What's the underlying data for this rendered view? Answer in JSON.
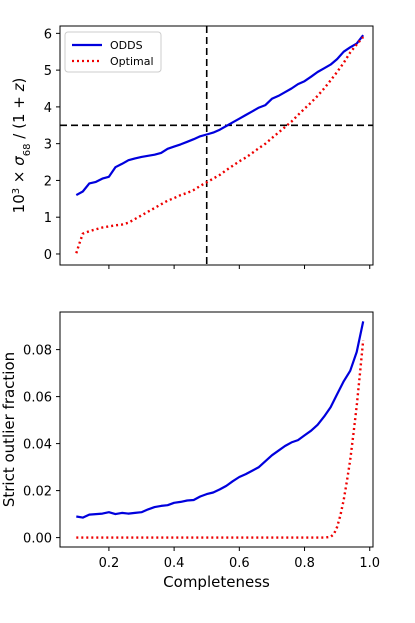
{
  "chart_data": [
    {
      "type": "line",
      "ylabel": "10³ × σ₆₈ / (1 + z)",
      "ylabel_parts": {
        "pre": "10",
        "sup": "3",
        "mid": " × ",
        "sigma": "σ",
        "sub": "68",
        "post": " / (1 + ",
        "z": "z",
        "close": ")"
      },
      "xlim": [
        0.05,
        1.01
      ],
      "ylim": [
        -0.3,
        6.2
      ],
      "yticks": [
        0,
        1,
        2,
        3,
        4,
        5,
        6
      ],
      "yticklabels": [
        "0",
        "1",
        "2",
        "3",
        "4",
        "5",
        "6"
      ],
      "xticks": [
        0.2,
        0.4,
        0.6,
        0.8,
        1.0
      ],
      "xticklabels_shown": false,
      "hline": 3.5,
      "vline": 0.5,
      "legend": {
        "placement": "top-left",
        "entries": [
          "ODDS",
          "Optimal"
        ]
      },
      "series": [
        {
          "name": "ODDS",
          "color": "#0000dd",
          "style": "solid",
          "x": [
            0.1,
            0.12,
            0.14,
            0.16,
            0.18,
            0.2,
            0.22,
            0.24,
            0.26,
            0.28,
            0.3,
            0.32,
            0.34,
            0.36,
            0.38,
            0.4,
            0.42,
            0.44,
            0.46,
            0.48,
            0.5,
            0.52,
            0.54,
            0.56,
            0.58,
            0.6,
            0.62,
            0.64,
            0.66,
            0.68,
            0.7,
            0.72,
            0.74,
            0.76,
            0.78,
            0.8,
            0.82,
            0.84,
            0.86,
            0.88,
            0.9,
            0.92,
            0.94,
            0.96,
            0.98
          ],
          "y": [
            1.6,
            1.7,
            1.92,
            1.96,
            2.05,
            2.1,
            2.36,
            2.45,
            2.55,
            2.6,
            2.64,
            2.67,
            2.7,
            2.75,
            2.86,
            2.92,
            2.98,
            3.05,
            3.12,
            3.2,
            3.25,
            3.3,
            3.38,
            3.48,
            3.58,
            3.68,
            3.78,
            3.88,
            3.98,
            4.05,
            4.22,
            4.3,
            4.4,
            4.5,
            4.62,
            4.7,
            4.82,
            4.95,
            5.05,
            5.15,
            5.3,
            5.5,
            5.62,
            5.72,
            5.95
          ]
        },
        {
          "name": "Optimal",
          "color": "#ee0000",
          "style": "dotted",
          "x": [
            0.1,
            0.11,
            0.12,
            0.14,
            0.16,
            0.18,
            0.2,
            0.22,
            0.24,
            0.26,
            0.28,
            0.3,
            0.32,
            0.34,
            0.36,
            0.38,
            0.4,
            0.42,
            0.44,
            0.46,
            0.48,
            0.5,
            0.52,
            0.54,
            0.56,
            0.58,
            0.6,
            0.62,
            0.64,
            0.66,
            0.68,
            0.7,
            0.72,
            0.74,
            0.76,
            0.78,
            0.8,
            0.82,
            0.84,
            0.86,
            0.88,
            0.9,
            0.92,
            0.94,
            0.96,
            0.98
          ],
          "y": [
            0.02,
            0.3,
            0.55,
            0.62,
            0.67,
            0.72,
            0.75,
            0.78,
            0.8,
            0.85,
            0.95,
            1.05,
            1.15,
            1.25,
            1.35,
            1.45,
            1.52,
            1.6,
            1.66,
            1.74,
            1.85,
            1.95,
            2.05,
            2.15,
            2.28,
            2.4,
            2.52,
            2.62,
            2.75,
            2.88,
            3.0,
            3.15,
            3.3,
            3.45,
            3.6,
            3.78,
            3.95,
            4.12,
            4.3,
            4.5,
            4.72,
            4.95,
            5.2,
            5.48,
            5.7,
            5.9
          ]
        }
      ]
    },
    {
      "type": "line",
      "xlabel": "Completeness",
      "ylabel": "Strict outlier fraction",
      "xlim": [
        0.05,
        1.01
      ],
      "ylim": [
        -0.004,
        0.096
      ],
      "yticks": [
        0.0,
        0.02,
        0.04,
        0.06,
        0.08
      ],
      "yticklabels": [
        "0.00",
        "0.02",
        "0.04",
        "0.06",
        "0.08"
      ],
      "xticks": [
        0.2,
        0.4,
        0.6,
        0.8,
        1.0
      ],
      "xticklabels": [
        "0.2",
        "0.4",
        "0.6",
        "0.8",
        "1.0"
      ],
      "series": [
        {
          "name": "ODDS",
          "color": "#0000dd",
          "style": "solid",
          "x": [
            0.1,
            0.12,
            0.14,
            0.16,
            0.18,
            0.2,
            0.22,
            0.24,
            0.26,
            0.28,
            0.3,
            0.32,
            0.34,
            0.36,
            0.38,
            0.4,
            0.42,
            0.44,
            0.46,
            0.48,
            0.5,
            0.52,
            0.54,
            0.56,
            0.58,
            0.6,
            0.62,
            0.64,
            0.66,
            0.68,
            0.7,
            0.72,
            0.74,
            0.76,
            0.78,
            0.8,
            0.82,
            0.84,
            0.86,
            0.88,
            0.9,
            0.92,
            0.94,
            0.96,
            0.98
          ],
          "y": [
            0.009,
            0.0085,
            0.0098,
            0.01,
            0.0102,
            0.0108,
            0.01,
            0.0105,
            0.0102,
            0.0105,
            0.0108,
            0.012,
            0.013,
            0.0135,
            0.0138,
            0.0148,
            0.0152,
            0.0158,
            0.016,
            0.0175,
            0.0185,
            0.0192,
            0.0205,
            0.022,
            0.024,
            0.0258,
            0.027,
            0.0285,
            0.03,
            0.0325,
            0.035,
            0.037,
            0.039,
            0.0405,
            0.0415,
            0.0435,
            0.0455,
            0.048,
            0.0515,
            0.0555,
            0.061,
            0.0665,
            0.071,
            0.079,
            0.092
          ]
        },
        {
          "name": "Optimal",
          "color": "#ee0000",
          "style": "dotted",
          "x": [
            0.1,
            0.2,
            0.3,
            0.4,
            0.5,
            0.6,
            0.7,
            0.8,
            0.86,
            0.88,
            0.89,
            0.9,
            0.91,
            0.92,
            0.93,
            0.94,
            0.95,
            0.96,
            0.97,
            0.98
          ],
          "y": [
            0.0,
            0.0,
            0.0,
            0.0,
            0.0,
            0.0,
            0.0,
            0.0,
            0.0,
            0.0003,
            0.0015,
            0.0045,
            0.0095,
            0.016,
            0.024,
            0.033,
            0.044,
            0.056,
            0.07,
            0.084
          ]
        }
      ]
    }
  ]
}
